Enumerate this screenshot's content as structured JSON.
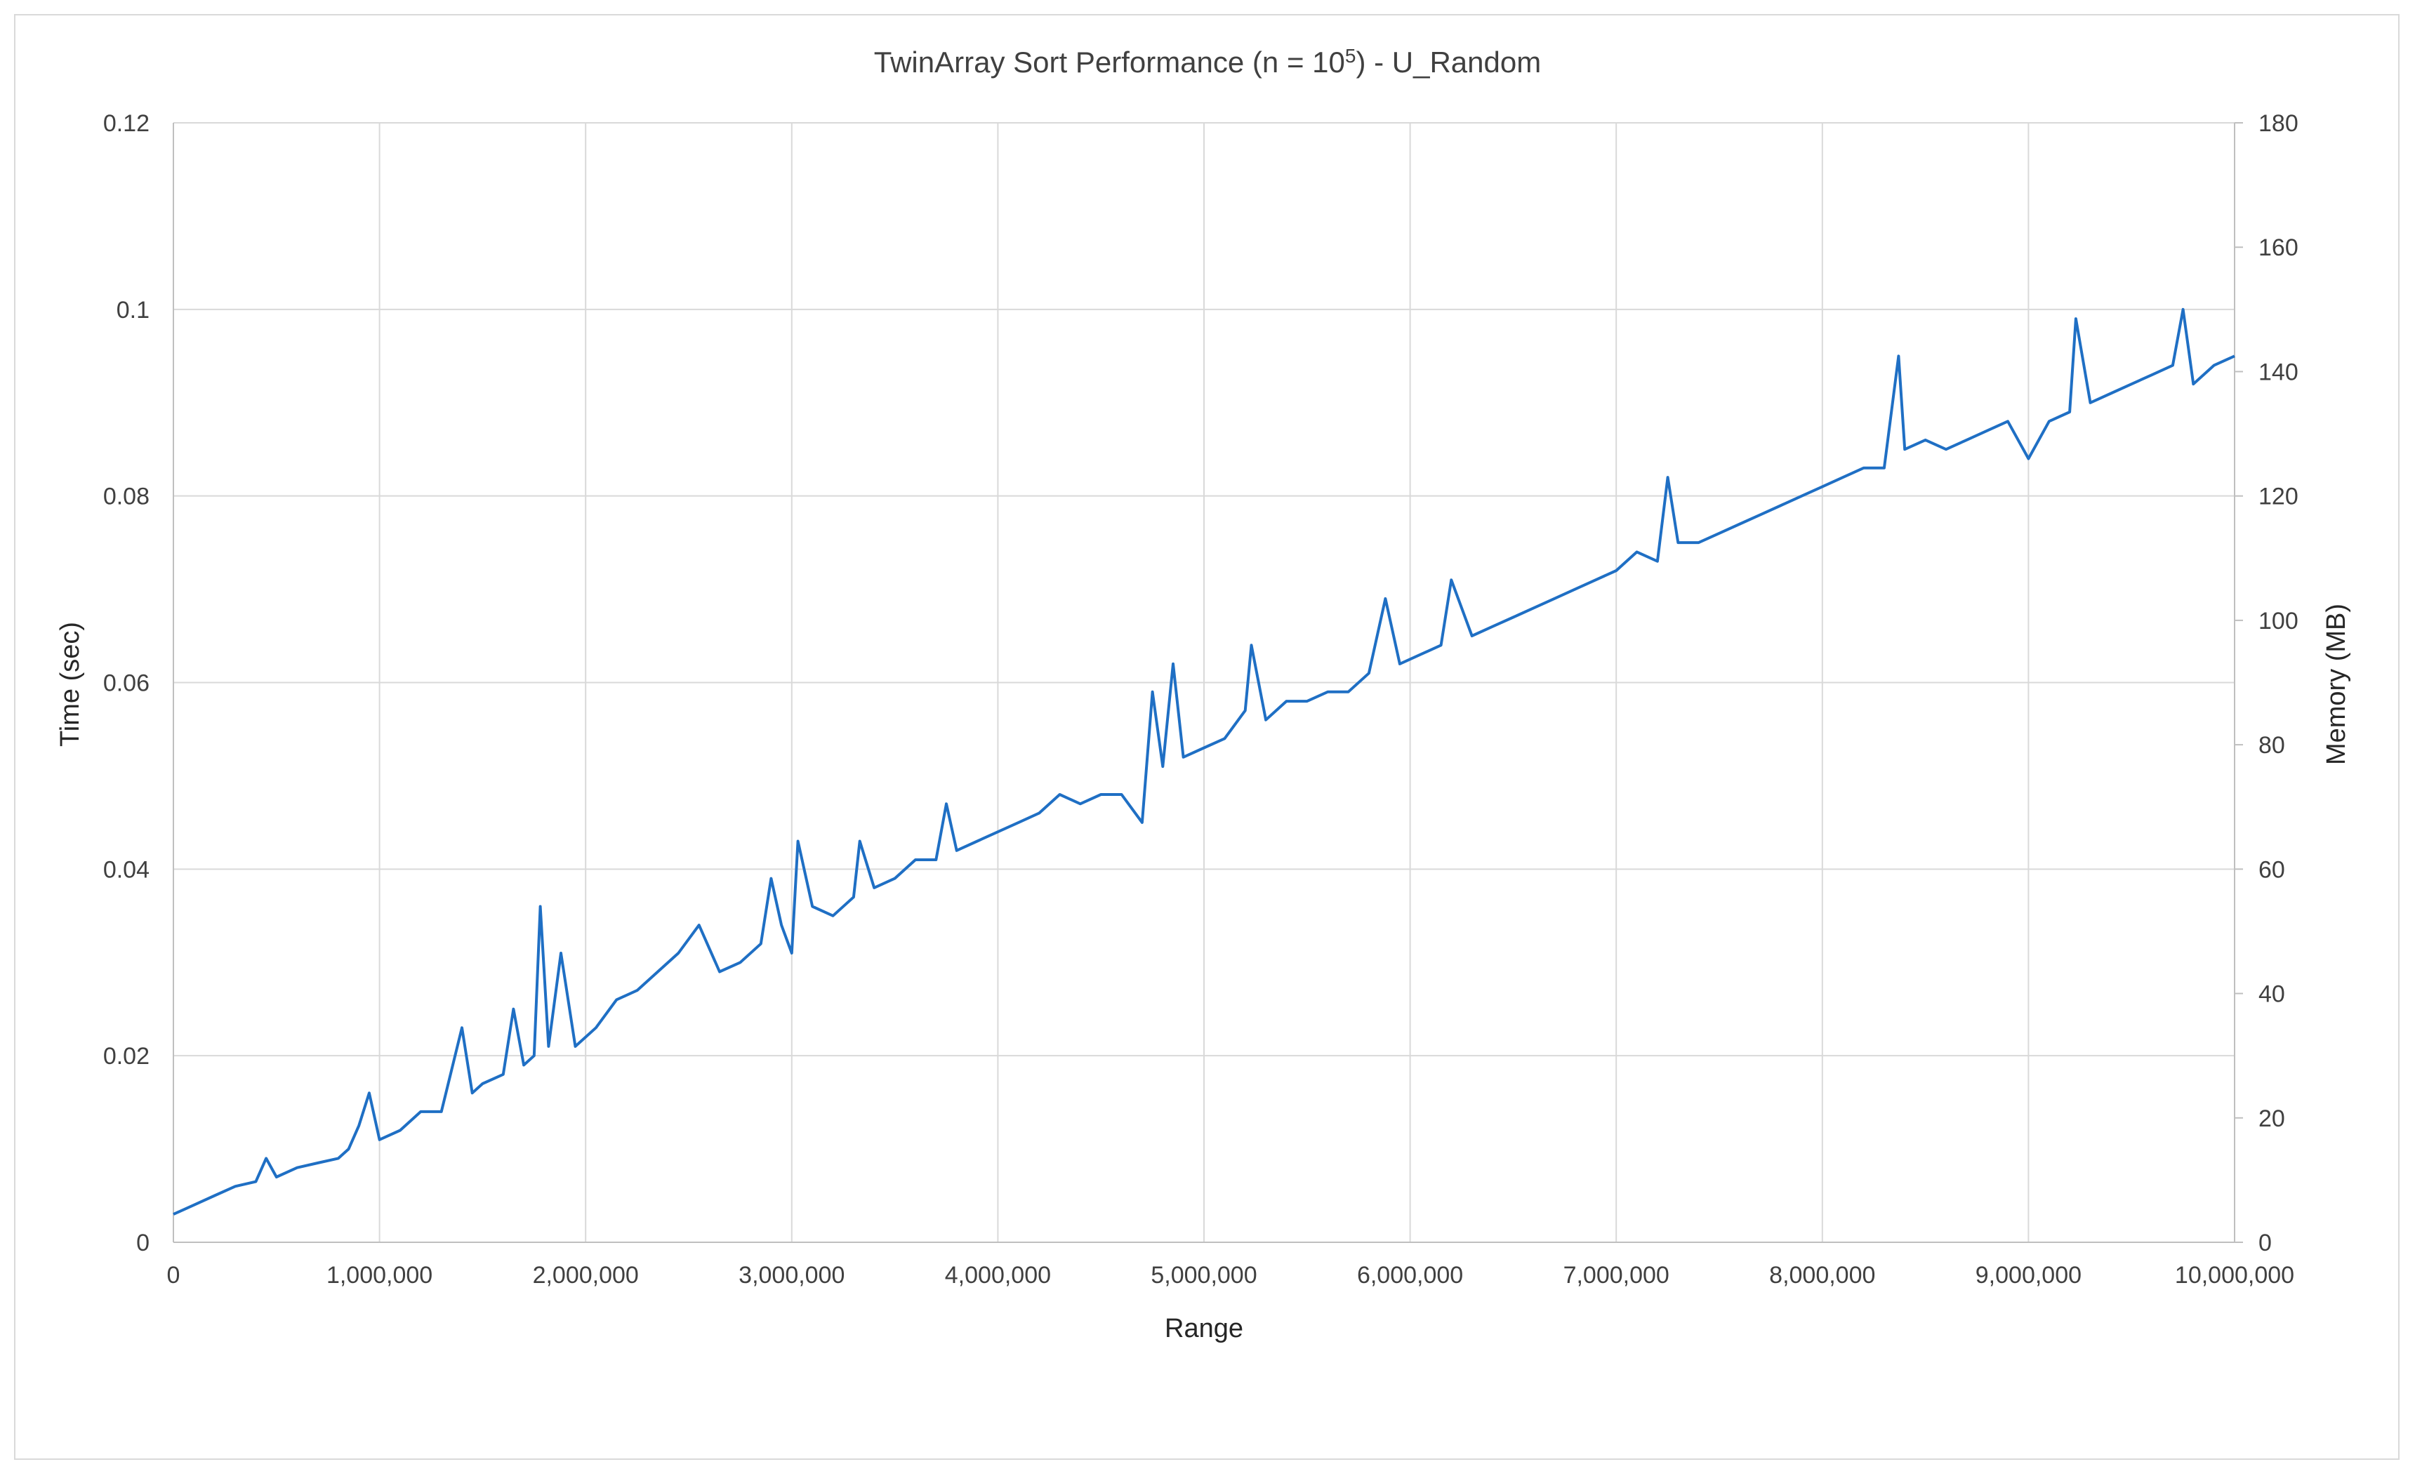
{
  "chart_data": {
    "type": "line",
    "title": "TwinArray Sort Performance (n = 10",
    "title_superscript": "5",
    "title_suffix": ") - U_Random",
    "xlabel": "Range",
    "ylabel": "Time (sec)",
    "y2label": "Memory (MB)",
    "xlim": [
      0,
      10000000
    ],
    "ylim": [
      0,
      0.12
    ],
    "y2lim": [
      0,
      180
    ],
    "grid": true,
    "legend": "none",
    "x_tick_labels": [
      "0",
      "1,000,000",
      "2,000,000",
      "3,000,000",
      "4,000,000",
      "5,000,000",
      "6,000,000",
      "7,000,000",
      "8,000,000",
      "9,000,000",
      "10,000,000"
    ],
    "y_tick_labels": [
      "0",
      "0.02",
      "0.04",
      "0.06",
      "0.08",
      "0.1",
      "0.12"
    ],
    "y2_tick_labels": [
      "0",
      "20",
      "40",
      "60",
      "80",
      "100",
      "120",
      "140",
      "160",
      "180"
    ],
    "line_color": "#1f6fc4",
    "series": [
      {
        "x": [
          0,
          100000,
          200000,
          300000,
          400000,
          450000,
          500000,
          600000,
          700000,
          800000,
          850000,
          900000,
          950000,
          1000000,
          1100000,
          1200000,
          1300000,
          1400000,
          1450000,
          1500000,
          1600000,
          1650000,
          1700000,
          1750000,
          1780000,
          1820000,
          1880000,
          1950000,
          2050000,
          2150000,
          2250000,
          2350000,
          2450000,
          2550000,
          2650000,
          2750000,
          2850000,
          2900000,
          2950000,
          3000000,
          3030000,
          3100000,
          3200000,
          3300000,
          3330000,
          3400000,
          3500000,
          3600000,
          3700000,
          3750000,
          3800000,
          3900000,
          4000000,
          4100000,
          4200000,
          4300000,
          4400000,
          4500000,
          4600000,
          4700000,
          4750000,
          4800000,
          4850000,
          4900000,
          5000000,
          5100000,
          5200000,
          5230000,
          5300000,
          5400000,
          5500000,
          5600000,
          5700000,
          5800000,
          5880000,
          5950000,
          6050000,
          6150000,
          6200000,
          6300000,
          6400000,
          6500000,
          6600000,
          6700000,
          6800000,
          6900000,
          7000000,
          7100000,
          7200000,
          7250000,
          7300000,
          7400000,
          7500000,
          7600000,
          7700000,
          7800000,
          7900000,
          8000000,
          8100000,
          8200000,
          8300000,
          8370000,
          8400000,
          8500000,
          8600000,
          8700000,
          8800000,
          8900000,
          9000000,
          9100000,
          9200000,
          9230000,
          9300000,
          9400000,
          9500000,
          9600000,
          9700000,
          9750000,
          9800000,
          9900000,
          10000000
        ],
        "values": [
          0.003,
          0.004,
          0.005,
          0.006,
          0.0065,
          0.009,
          0.007,
          0.008,
          0.0085,
          0.009,
          0.01,
          0.0125,
          0.016,
          0.011,
          0.012,
          0.014,
          0.014,
          0.023,
          0.016,
          0.017,
          0.018,
          0.025,
          0.019,
          0.02,
          0.036,
          0.021,
          0.031,
          0.021,
          0.023,
          0.026,
          0.027,
          0.029,
          0.031,
          0.034,
          0.029,
          0.03,
          0.032,
          0.039,
          0.034,
          0.031,
          0.043,
          0.036,
          0.035,
          0.037,
          0.043,
          0.038,
          0.039,
          0.041,
          0.041,
          0.047,
          0.042,
          0.043,
          0.044,
          0.045,
          0.046,
          0.048,
          0.047,
          0.048,
          0.048,
          0.045,
          0.059,
          0.051,
          0.062,
          0.052,
          0.053,
          0.054,
          0.057,
          0.064,
          0.056,
          0.058,
          0.058,
          0.059,
          0.059,
          0.061,
          0.069,
          0.062,
          0.063,
          0.064,
          0.071,
          0.065,
          0.066,
          0.067,
          0.068,
          0.069,
          0.07,
          0.071,
          0.072,
          0.074,
          0.073,
          0.082,
          0.075,
          0.075,
          0.076,
          0.077,
          0.078,
          0.079,
          0.08,
          0.081,
          0.082,
          0.083,
          0.083,
          0.095,
          0.085,
          0.086,
          0.085,
          0.086,
          0.087,
          0.088,
          0.084,
          0.088,
          0.089,
          0.099,
          0.09,
          0.091,
          0.092,
          0.093,
          0.094,
          0.1,
          0.092,
          0.094,
          0.095
        ]
      }
    ]
  }
}
